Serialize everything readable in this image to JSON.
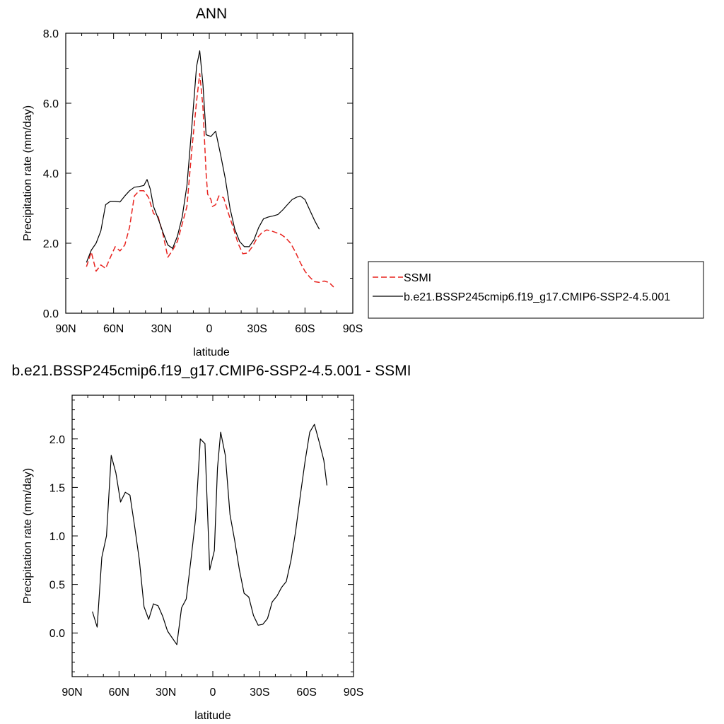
{
  "chart_data": [
    {
      "type": "line",
      "title": "ANN",
      "xlabel": "latitude",
      "ylabel": "Precipitation rate (mm/day)",
      "xlim": [
        90,
        -90
      ],
      "ylim": [
        0,
        8
      ],
      "xticks": [
        {
          "value": 90,
          "label": "90N"
        },
        {
          "value": 60,
          "label": "60N"
        },
        {
          "value": 30,
          "label": "30N"
        },
        {
          "value": 0,
          "label": "0"
        },
        {
          "value": -30,
          "label": "30S"
        },
        {
          "value": -60,
          "label": "60S"
        },
        {
          "value": -90,
          "label": "90S"
        }
      ],
      "yticks": [
        {
          "value": 0,
          "label": "0.0"
        },
        {
          "value": 2,
          "label": "2.0"
        },
        {
          "value": 4,
          "label": "4.0"
        },
        {
          "value": 6,
          "label": "6.0"
        },
        {
          "value": 8,
          "label": "8.0"
        }
      ],
      "legend": "right",
      "series": [
        {
          "name": "SSMI",
          "color": "#e8231f",
          "dash": "dashed",
          "points": [
            [
              77,
              1.33
            ],
            [
              74,
              1.75
            ],
            [
              71,
              1.2
            ],
            [
              68,
              1.38
            ],
            [
              65,
              1.28
            ],
            [
              62,
              1.6
            ],
            [
              59,
              1.9
            ],
            [
              56,
              1.78
            ],
            [
              53,
              1.95
            ],
            [
              50,
              2.45
            ],
            [
              47,
              3.35
            ],
            [
              44,
              3.5
            ],
            [
              41,
              3.5
            ],
            [
              38,
              3.3
            ],
            [
              35,
              2.85
            ],
            [
              32,
              2.75
            ],
            [
              29,
              2.25
            ],
            [
              26,
              1.6
            ],
            [
              23,
              1.8
            ],
            [
              20,
              2.05
            ],
            [
              17,
              2.55
            ],
            [
              14,
              3.05
            ],
            [
              11,
              4.65
            ],
            [
              8,
              6.05
            ],
            [
              6,
              6.85
            ],
            [
              4,
              5.9
            ],
            [
              2,
              4.0
            ],
            [
              1,
              3.4
            ],
            [
              -1,
              3.25
            ],
            [
              -2,
              3.05
            ],
            [
              -4,
              3.1
            ],
            [
              -6,
              3.35
            ],
            [
              -9,
              3.3
            ],
            [
              -12,
              2.85
            ],
            [
              -15,
              2.45
            ],
            [
              -18,
              2.0
            ],
            [
              -21,
              1.7
            ],
            [
              -24,
              1.72
            ],
            [
              -27,
              1.9
            ],
            [
              -30,
              2.15
            ],
            [
              -33,
              2.3
            ],
            [
              -36,
              2.38
            ],
            [
              -39,
              2.35
            ],
            [
              -42,
              2.3
            ],
            [
              -45,
              2.25
            ],
            [
              -48,
              2.15
            ],
            [
              -51,
              2.0
            ],
            [
              -54,
              1.75
            ],
            [
              -57,
              1.45
            ],
            [
              -60,
              1.2
            ],
            [
              -63,
              1.03
            ],
            [
              -66,
              0.9
            ],
            [
              -69,
              0.88
            ],
            [
              -72,
              0.92
            ],
            [
              -75,
              0.88
            ],
            [
              -78,
              0.75
            ]
          ]
        },
        {
          "name": "b.e21.BSSP245cmip6.f19_g17.CMIP6-SSP2-4.5.001",
          "color": "#000000",
          "dash": "solid",
          "points": [
            [
              77,
              1.45
            ],
            [
              74,
              1.8
            ],
            [
              71,
              2.0
            ],
            [
              68,
              2.35
            ],
            [
              65,
              3.1
            ],
            [
              62,
              3.2
            ],
            [
              59,
              3.2
            ],
            [
              56,
              3.18
            ],
            [
              53,
              3.35
            ],
            [
              50,
              3.5
            ],
            [
              47,
              3.6
            ],
            [
              44,
              3.62
            ],
            [
              41,
              3.65
            ],
            [
              39,
              3.82
            ],
            [
              37,
              3.55
            ],
            [
              35,
              3.05
            ],
            [
              32,
              2.7
            ],
            [
              29,
              2.3
            ],
            [
              26,
              1.95
            ],
            [
              23,
              1.85
            ],
            [
              20,
              2.2
            ],
            [
              17,
              2.75
            ],
            [
              14,
              3.65
            ],
            [
              11,
              5.3
            ],
            [
              8,
              7.05
            ],
            [
              6,
              7.5
            ],
            [
              4,
              6.55
            ],
            [
              2,
              5.1
            ],
            [
              -1,
              5.05
            ],
            [
              -4,
              5.2
            ],
            [
              -7,
              4.55
            ],
            [
              -10,
              3.85
            ],
            [
              -13,
              3.0
            ],
            [
              -16,
              2.4
            ],
            [
              -19,
              2.05
            ],
            [
              -22,
              1.9
            ],
            [
              -25,
              1.9
            ],
            [
              -28,
              2.1
            ],
            [
              -31,
              2.45
            ],
            [
              -34,
              2.7
            ],
            [
              -37,
              2.75
            ],
            [
              -40,
              2.78
            ],
            [
              -43,
              2.82
            ],
            [
              -46,
              2.95
            ],
            [
              -49,
              3.1
            ],
            [
              -52,
              3.25
            ],
            [
              -55,
              3.32
            ],
            [
              -57,
              3.35
            ],
            [
              -60,
              3.25
            ],
            [
              -63,
              2.95
            ],
            [
              -66,
              2.65
            ],
            [
              -69,
              2.4
            ]
          ]
        }
      ]
    },
    {
      "type": "line",
      "title": "b.e21.BSSP245cmip6.f19_g17.CMIP6-SSP2-4.5.001 - SSMI",
      "xlabel": "latitude",
      "ylabel": "Precipitation rate (mm/day)",
      "xlim": [
        90,
        -90
      ],
      "ylim": [
        -0.45,
        2.45
      ],
      "xticks": [
        {
          "value": 90,
          "label": "90N"
        },
        {
          "value": 60,
          "label": "60N"
        },
        {
          "value": 30,
          "label": "30N"
        },
        {
          "value": 0,
          "label": "0"
        },
        {
          "value": -30,
          "label": "30S"
        },
        {
          "value": -60,
          "label": "60S"
        },
        {
          "value": -90,
          "label": "90S"
        }
      ],
      "yticks": [
        {
          "value": 0,
          "label": "0.0"
        },
        {
          "value": 0.5,
          "label": "0.5"
        },
        {
          "value": 1,
          "label": "1.0"
        },
        {
          "value": 1.5,
          "label": "1.5"
        },
        {
          "value": 2,
          "label": "2.0"
        }
      ],
      "series": [
        {
          "color": "#000000",
          "dash": "solid",
          "points": [
            [
              77,
              0.22
            ],
            [
              74,
              0.06
            ],
            [
              71,
              0.78
            ],
            [
              68,
              1.0
            ],
            [
              65,
              1.83
            ],
            [
              62,
              1.65
            ],
            [
              59,
              1.35
            ],
            [
              56,
              1.45
            ],
            [
              53,
              1.42
            ],
            [
              50,
              1.1
            ],
            [
              47,
              0.75
            ],
            [
              44,
              0.27
            ],
            [
              41,
              0.14
            ],
            [
              38,
              0.3
            ],
            [
              35,
              0.28
            ],
            [
              32,
              0.17
            ],
            [
              29,
              0.02
            ],
            [
              26,
              -0.05
            ],
            [
              23,
              -0.12
            ],
            [
              20,
              0.26
            ],
            [
              17,
              0.35
            ],
            [
              14,
              0.75
            ],
            [
              11,
              1.18
            ],
            [
              8,
              2.0
            ],
            [
              5,
              1.95
            ],
            [
              2,
              0.65
            ],
            [
              -1,
              0.85
            ],
            [
              -3,
              1.7
            ],
            [
              -5,
              2.07
            ],
            [
              -8,
              1.83
            ],
            [
              -11,
              1.22
            ],
            [
              -14,
              0.95
            ],
            [
              -17,
              0.65
            ],
            [
              -20,
              0.41
            ],
            [
              -23,
              0.37
            ],
            [
              -26,
              0.18
            ],
            [
              -29,
              0.08
            ],
            [
              -32,
              0.09
            ],
            [
              -35,
              0.15
            ],
            [
              -38,
              0.32
            ],
            [
              -41,
              0.38
            ],
            [
              -44,
              0.47
            ],
            [
              -47,
              0.53
            ],
            [
              -50,
              0.75
            ],
            [
              -53,
              1.05
            ],
            [
              -56,
              1.42
            ],
            [
              -59,
              1.77
            ],
            [
              -62,
              2.07
            ],
            [
              -65,
              2.15
            ],
            [
              -68,
              1.97
            ],
            [
              -71,
              1.78
            ],
            [
              -73,
              1.52
            ]
          ]
        }
      ]
    }
  ]
}
